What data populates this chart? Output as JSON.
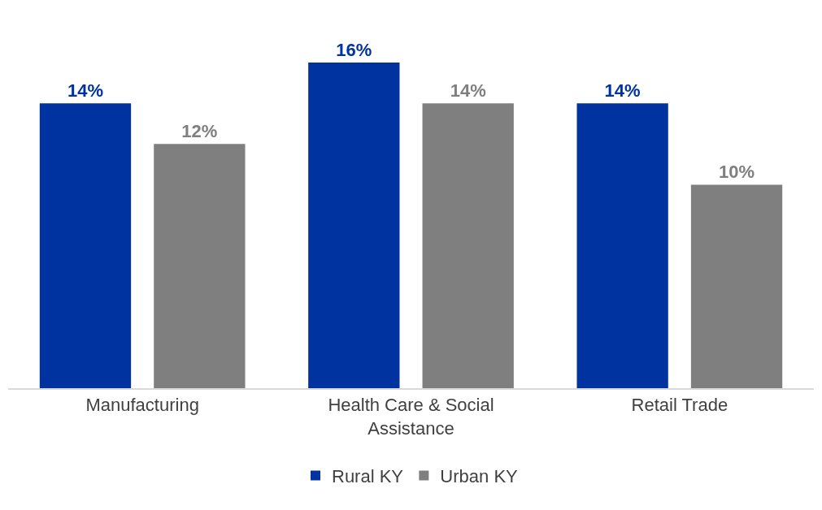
{
  "chart_data": {
    "type": "bar",
    "categories": [
      "Manufacturing",
      "Health Care & Social Assistance",
      "Retail Trade"
    ],
    "series": [
      {
        "name": "Rural KY",
        "color": "#0033a0",
        "values": [
          14,
          16,
          14
        ],
        "value_labels": [
          "14%",
          "16%",
          "14%"
        ]
      },
      {
        "name": "Urban KY",
        "color": "#7f7f7f",
        "values": [
          12,
          14,
          10
        ],
        "value_labels": [
          "12%",
          "14%",
          "10%"
        ]
      }
    ],
    "grid": false,
    "legend": "bottom"
  }
}
